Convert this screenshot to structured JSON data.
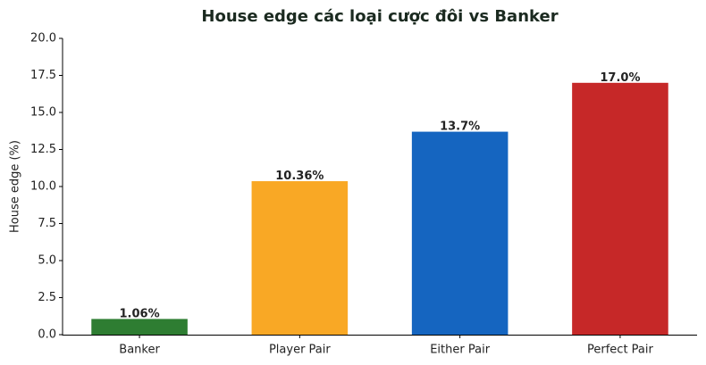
{
  "chart_data": {
    "type": "bar",
    "title": "House edge các loại cược đôi vs Banker",
    "y_label": "House edge (%)",
    "categories": [
      "Banker",
      "Player Pair",
      "Either Pair",
      "Perfect Pair"
    ],
    "values": [
      1.06,
      10.36,
      13.7,
      17.0
    ],
    "value_labels": [
      "1.06%",
      "10.36%",
      "13.7%",
      "17.0%"
    ],
    "colors": [
      "#2e7d32",
      "#f9a825",
      "#1565c0",
      "#c62828"
    ],
    "ylim": [
      0,
      20
    ],
    "yticks": [
      {
        "value": 0,
        "label": "0.0"
      },
      {
        "value": 2.5,
        "label": "2.5"
      },
      {
        "value": 5,
        "label": "5.0"
      },
      {
        "value": 7.5,
        "label": "7.5"
      },
      {
        "value": 10,
        "label": "10.0"
      },
      {
        "value": 12.5,
        "label": "12.5"
      },
      {
        "value": 15,
        "label": "15.0"
      },
      {
        "value": 17.5,
        "label": "17.5"
      },
      {
        "value": 20,
        "label": "20.0"
      }
    ],
    "grid": false
  }
}
